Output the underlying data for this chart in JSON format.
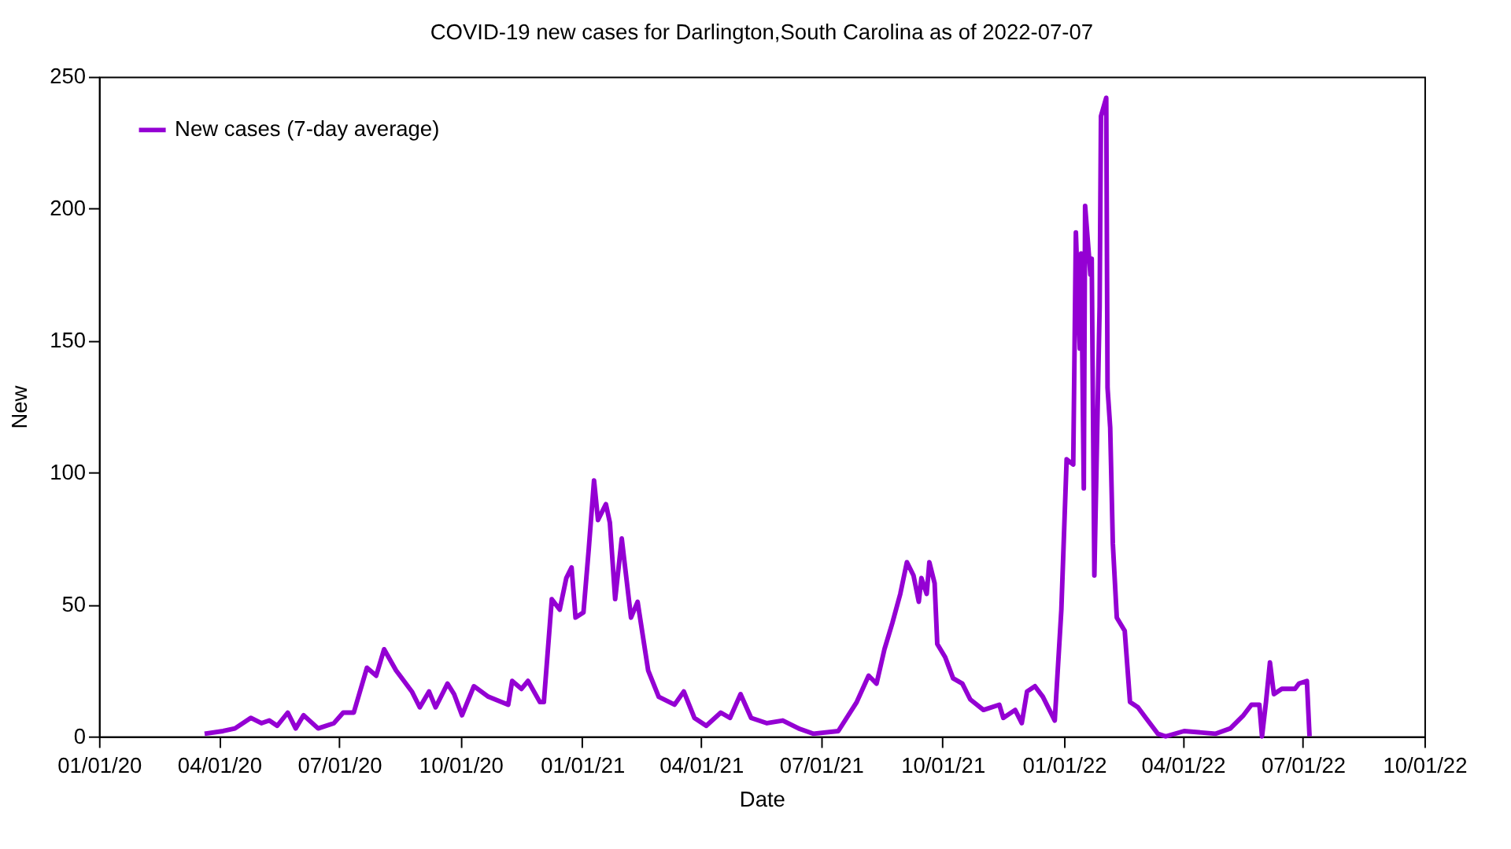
{
  "chart_data": {
    "type": "line",
    "title": "COVID-19 new cases for Darlington,South Carolina as of 2022-07-07",
    "xlabel": "Date",
    "ylabel": "New",
    "x": [
      "2020-03-21",
      "2020-04-04",
      "2020-04-13",
      "2020-04-25",
      "2020-05-03",
      "2020-05-09",
      "2020-05-15",
      "2020-05-23",
      "2020-05-29",
      "2020-06-04",
      "2020-06-15",
      "2020-06-27",
      "2020-07-04",
      "2020-07-12",
      "2020-07-22",
      "2020-07-29",
      "2020-08-04",
      "2020-08-13",
      "2020-08-25",
      "2020-08-31",
      "2020-09-07",
      "2020-09-12",
      "2020-09-21",
      "2020-09-26",
      "2020-10-02",
      "2020-10-11",
      "2020-10-22",
      "2020-11-06",
      "2020-11-09",
      "2020-11-16",
      "2020-11-21",
      "2020-11-30",
      "2020-12-03",
      "2020-12-09",
      "2020-12-15",
      "2020-12-20",
      "2020-12-24",
      "2020-12-27",
      "2021-01-02",
      "2021-01-06",
      "2021-01-10",
      "2021-01-13",
      "2021-01-19",
      "2021-01-22",
      "2021-01-26",
      "2021-01-31",
      "2021-02-07",
      "2021-02-12",
      "2021-02-20",
      "2021-02-28",
      "2021-03-12",
      "2021-03-19",
      "2021-03-27",
      "2021-04-05",
      "2021-04-16",
      "2021-04-23",
      "2021-05-01",
      "2021-05-09",
      "2021-05-21",
      "2021-06-02",
      "2021-06-14",
      "2021-06-25",
      "2021-07-14",
      "2021-07-28",
      "2021-08-06",
      "2021-08-12",
      "2021-08-18",
      "2021-08-24",
      "2021-08-30",
      "2021-09-04",
      "2021-09-09",
      "2021-09-13",
      "2021-09-15",
      "2021-09-19",
      "2021-09-21",
      "2021-09-25",
      "2021-09-27",
      "2021-10-03",
      "2021-10-09",
      "2021-10-16",
      "2021-10-22",
      "2021-11-01",
      "2021-11-13",
      "2021-11-16",
      "2021-11-25",
      "2021-11-30",
      "2021-12-04",
      "2021-12-10",
      "2021-12-16",
      "2021-12-25",
      "2021-12-30",
      "2022-01-03",
      "2022-01-08",
      "2022-01-10",
      "2022-01-13",
      "2022-01-14",
      "2022-01-16",
      "2022-01-17",
      "2022-01-21",
      "2022-01-22",
      "2022-01-24",
      "2022-01-28",
      "2022-01-29",
      "2022-02-02",
      "2022-02-03",
      "2022-02-05",
      "2022-02-07",
      "2022-02-10",
      "2022-02-16",
      "2022-02-20",
      "2022-02-26",
      "2022-03-04",
      "2022-03-13",
      "2022-03-19",
      "2022-04-02",
      "2022-04-26",
      "2022-05-07",
      "2022-05-17",
      "2022-05-23",
      "2022-05-29",
      "2022-05-31",
      "2022-06-03",
      "2022-06-06",
      "2022-06-09",
      "2022-06-15",
      "2022-06-25",
      "2022-06-28",
      "2022-07-04",
      "2022-07-06"
    ],
    "series": [
      {
        "name": "New cases (7-day average)",
        "color": "#9400d3",
        "values": [
          1,
          2,
          3,
          7,
          5,
          6,
          4,
          9,
          3,
          8,
          3,
          5,
          9,
          9,
          26,
          23,
          33,
          25,
          17,
          11,
          17,
          11,
          20,
          16,
          8,
          19,
          15,
          12,
          21,
          18,
          21,
          13,
          13,
          52,
          48,
          60,
          64,
          45,
          47,
          71,
          97,
          82,
          88,
          81,
          52,
          75,
          45,
          51,
          25,
          15,
          12,
          17,
          7,
          4,
          9,
          7,
          16,
          7,
          5,
          6,
          3,
          1,
          2,
          13,
          23,
          20,
          33,
          43,
          54,
          66,
          61,
          51,
          60,
          54,
          66,
          58,
          35,
          30,
          22,
          20,
          14,
          10,
          12,
          7,
          10,
          5,
          17,
          19,
          15,
          6,
          48,
          105,
          103,
          191,
          147,
          183,
          94,
          201,
          175,
          181,
          61,
          163,
          235,
          242,
          132,
          117,
          73,
          45,
          40,
          13,
          11,
          7,
          1,
          0,
          2,
          1,
          3,
          8,
          12,
          12,
          0,
          13,
          28,
          16,
          18,
          18,
          20,
          21,
          0
        ]
      }
    ],
    "xlim": [
      "2020-01-01",
      "2022-10-01"
    ],
    "xticks": [
      {
        "value": "2020-01-01",
        "label": "01/01/20"
      },
      {
        "value": "2020-04-01",
        "label": "04/01/20"
      },
      {
        "value": "2020-07-01",
        "label": "07/01/20"
      },
      {
        "value": "2020-10-01",
        "label": "10/01/20"
      },
      {
        "value": "2021-01-01",
        "label": "01/01/21"
      },
      {
        "value": "2021-04-01",
        "label": "04/01/21"
      },
      {
        "value": "2021-07-01",
        "label": "07/01/21"
      },
      {
        "value": "2021-10-01",
        "label": "10/01/21"
      },
      {
        "value": "2022-01-01",
        "label": "01/01/22"
      },
      {
        "value": "2022-04-01",
        "label": "04/01/22"
      },
      {
        "value": "2022-07-01",
        "label": "07/01/22"
      },
      {
        "value": "2022-10-01",
        "label": "10/01/22"
      }
    ],
    "ylim": [
      0,
      250
    ],
    "yticks": [
      0,
      50,
      100,
      150,
      200,
      250
    ],
    "grid": false,
    "legend": "top left"
  }
}
